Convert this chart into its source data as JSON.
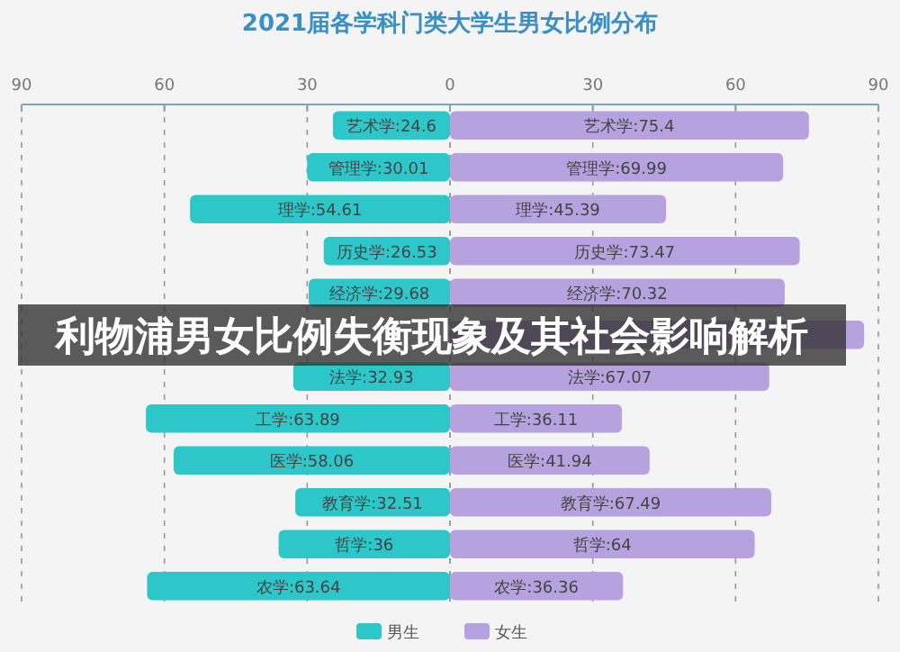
{
  "chart_data": [
    {
      "type": "bar",
      "orientation": "horizontal",
      "title": "2021届各学科门类大学生男女比例分布",
      "categories": [
        null,
        null,
        null,
        null,
        null,
        null,
        null,
        null,
        null,
        null,
        null,
        null
      ],
      "series": [
        {
          "name": "男生",
          "color": "#2ec7c9",
          "values": [
            24.6,
            30.01,
            54.61,
            26.53,
            29.68,
            null,
            32.93,
            63.89,
            58.06,
            32.51,
            36,
            63.64
          ],
          "value_labels": [
            "艺术学:24.6",
            "管理学:30.01",
            "理学:54.61",
            "历史学:26.53",
            "经济学:29.68",
            null,
            "法学:32.93",
            "工学:63.89",
            "医学:58.06",
            "教育学:32.51",
            "哲学:36",
            "农学:63.64"
          ]
        }
      ],
      "xlim": [
        90,
        0
      ],
      "xticks": [
        90,
        60,
        30,
        0
      ],
      "grid": "x",
      "legend": "bottom",
      "annotations": [
        "利物浦男女比例失衡现象及其社会影响解析"
      ]
    },
    {
      "type": "bar",
      "orientation": "horizontal",
      "categories": [
        null,
        null,
        null,
        null,
        null,
        null,
        null,
        null,
        null,
        null,
        null,
        null
      ],
      "series": [
        {
          "name": "女生",
          "color": "#b6a2de",
          "values": [
            75.4,
            69.99,
            45.39,
            73.47,
            70.32,
            87,
            67.07,
            36.11,
            41.94,
            67.49,
            64,
            36.36
          ],
          "value_labels": [
            "艺术学:75.4",
            "管理学:69.99",
            "理学:45.39",
            "历史学:73.47",
            "经济学:70.32",
            null,
            "法学:67.07",
            "工学:36.11",
            "医学:41.94",
            "教育学:67.49",
            "哲学:64",
            "农学:36.36"
          ]
        }
      ],
      "xlim": [
        0,
        90
      ],
      "xticks": [
        {
          "value": 0,
          "label": null
        },
        30,
        60,
        90
      ],
      "grid": "x",
      "legend": "bottom"
    }
  ]
}
